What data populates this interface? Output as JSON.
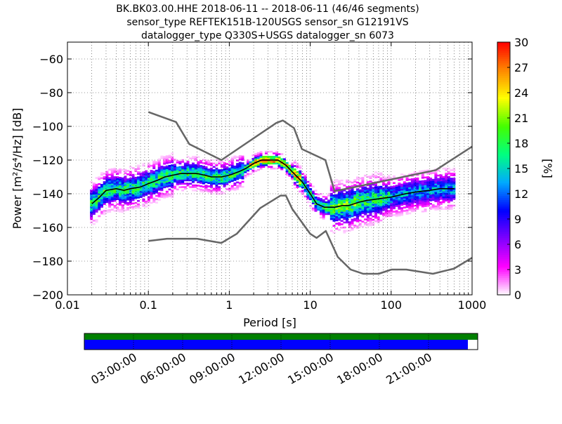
{
  "chart_data": {
    "type": "heatmap",
    "title_lines": [
      "BK.BK03.00.HHE   2018-06-11 -- 2018-06-11  (46/46 segments)",
      "sensor_type REFTEK151B-120USGS sensor_sn G12191VS",
      "datalogger_type Q330S+USGS datalogger_sn 6073"
    ],
    "xlabel": "Period [s]",
    "ylabel": "Power [m²/s⁴/Hz] [dB]",
    "xscale": "log",
    "xlim": [
      0.01,
      1000
    ],
    "ylim": [
      -200,
      -50
    ],
    "xticks": [
      {
        "value": 0.01,
        "label": "0.01"
      },
      {
        "value": 0.1,
        "label": "0.1"
      },
      {
        "value": 1,
        "label": "1"
      },
      {
        "value": 10,
        "label": "10"
      },
      {
        "value": 100,
        "label": "100"
      },
      {
        "value": 1000,
        "label": "1000"
      }
    ],
    "yticks": [
      {
        "value": -200,
        "label": "−200"
      },
      {
        "value": -180,
        "label": "−180"
      },
      {
        "value": -160,
        "label": "−160"
      },
      {
        "value": -140,
        "label": "−140"
      },
      {
        "value": -120,
        "label": "−120"
      },
      {
        "value": -100,
        "label": "−100"
      },
      {
        "value": -80,
        "label": "−80"
      },
      {
        "value": -60,
        "label": "−60"
      }
    ],
    "grid": true,
    "noise_models": {
      "high": {
        "x": [
          0.1,
          0.22,
          0.32,
          0.8,
          3.8,
          4.6,
          6.3,
          7.9,
          15.4,
          20,
          354.8,
          1000
        ],
        "y": [
          -91.5,
          -97.4,
          -110.5,
          -120,
          -98,
          -96.5,
          -101,
          -113.5,
          -120,
          -138.5,
          -126,
          -112
        ]
      },
      "low": {
        "x": [
          0.1,
          0.17,
          0.4,
          0.8,
          1.24,
          2.4,
          4.3,
          5,
          6,
          10,
          12,
          15.6,
          21.9,
          31.6,
          45,
          70,
          101,
          154,
          328,
          600,
          1000
        ],
        "y": [
          -168,
          -166.7,
          -166.7,
          -169.2,
          -163.7,
          -148.6,
          -141.1,
          -141.1,
          -149,
          -163.8,
          -166.2,
          -162.1,
          -177.5,
          -185,
          -187.5,
          -187.5,
          -185,
          -185,
          -187.5,
          -184.4,
          -178
        ]
      }
    },
    "mean_curve": {
      "x": [
        0.02,
        0.025,
        0.03,
        0.04,
        0.05,
        0.06,
        0.08,
        0.1,
        0.13,
        0.16,
        0.2,
        0.25,
        0.3,
        0.4,
        0.5,
        0.6,
        0.8,
        1,
        1.3,
        1.6,
        2,
        2.5,
        3,
        4,
        5,
        6,
        8,
        10,
        12,
        15,
        20,
        25,
        30,
        40,
        50,
        70,
        100,
        150,
        200,
        300,
        400,
        600
      ],
      "y": [
        -146,
        -142,
        -138,
        -137,
        -138,
        -137,
        -136,
        -134,
        -132,
        -130,
        -129,
        -128,
        -128,
        -128,
        -129,
        -130,
        -130,
        -129,
        -127,
        -125,
        -122,
        -120,
        -120,
        -120,
        -123,
        -127,
        -133,
        -140,
        -146,
        -148,
        -148,
        -147,
        -147,
        -145,
        -144,
        -143,
        -142,
        -140,
        -139,
        -138,
        -137,
        -137
      ]
    },
    "colorbar": {
      "label": "[%]",
      "range": [
        0,
        30
      ],
      "ticks": [
        {
          "value": 0,
          "label": "0"
        },
        {
          "value": 3,
          "label": "3"
        },
        {
          "value": 6,
          "label": "6"
        },
        {
          "value": 9,
          "label": "9"
        },
        {
          "value": 12,
          "label": "12"
        },
        {
          "value": 15,
          "label": "15"
        },
        {
          "value": 18,
          "label": "18"
        },
        {
          "value": 21,
          "label": "21"
        },
        {
          "value": 24,
          "label": "24"
        },
        {
          "value": 27,
          "label": "27"
        },
        {
          "value": 30,
          "label": "30"
        }
      ],
      "stops": [
        "#ffffff",
        "#ff00ff",
        "#8000ff",
        "#0000ff",
        "#00aaff",
        "#00ff80",
        "#44ff00",
        "#ffff00",
        "#ff8800",
        "#ff0000"
      ]
    },
    "coverage": {
      "time_range_hours": [
        0,
        24
      ],
      "tick_hours": [
        3,
        6,
        9,
        12,
        15,
        18,
        21
      ],
      "tick_labels": [
        "03:00:00",
        "06:00:00",
        "09:00:00",
        "12:00:00",
        "15:00:00",
        "18:00:00",
        "21:00:00"
      ],
      "top_bar": {
        "start_hour": 0,
        "end_hour": 24,
        "color": "#008000"
      },
      "bottom_bar": {
        "start_hour": 0,
        "end_hour": 23.4,
        "color": "#0000ff"
      }
    }
  }
}
